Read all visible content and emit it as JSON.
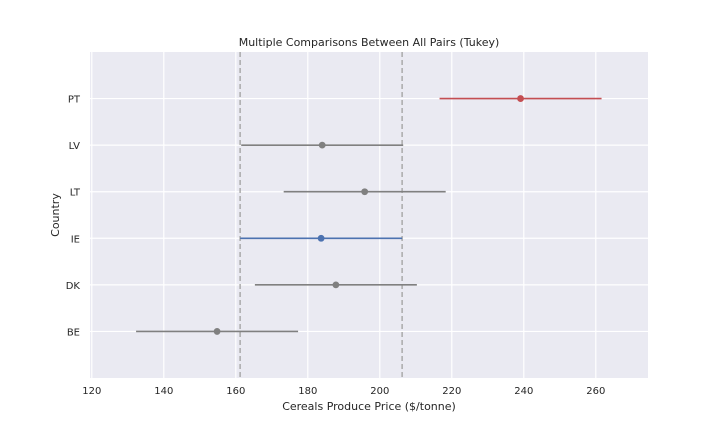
{
  "chart_data": {
    "type": "errorbar",
    "title": "Multiple Comparisons Between All Pairs (Tukey)",
    "xlabel": "Cereals Produce Price ($/tonne)",
    "ylabel": "Country",
    "xlim": [
      119.5,
      274.5
    ],
    "xticks": [
      120,
      140,
      160,
      180,
      200,
      220,
      240,
      260
    ],
    "grid": true,
    "reference_lines": [
      161.2,
      206.2
    ],
    "reference_line_color": "#aaaaaa",
    "categories": [
      "PT",
      "LV",
      "LT",
      "IE",
      "DK",
      "BE"
    ],
    "points": [
      {
        "label": "PT",
        "mean": 239.1,
        "lower": 216.6,
        "upper": 261.6,
        "color": "#c44e52"
      },
      {
        "label": "LV",
        "mean": 184.0,
        "lower": 161.5,
        "upper": 206.5,
        "color": "#808080"
      },
      {
        "label": "LT",
        "mean": 195.8,
        "lower": 173.3,
        "upper": 218.3,
        "color": "#808080"
      },
      {
        "label": "IE",
        "mean": 183.7,
        "lower": 161.2,
        "upper": 206.2,
        "color": "#4c72b0"
      },
      {
        "label": "DK",
        "mean": 187.8,
        "lower": 165.3,
        "upper": 210.3,
        "color": "#808080"
      },
      {
        "label": "BE",
        "mean": 154.8,
        "lower": 132.3,
        "upper": 177.3,
        "color": "#808080"
      }
    ],
    "colors": {
      "background": "#eaeaf2",
      "grid": "#ffffff",
      "text": "#262626"
    }
  }
}
